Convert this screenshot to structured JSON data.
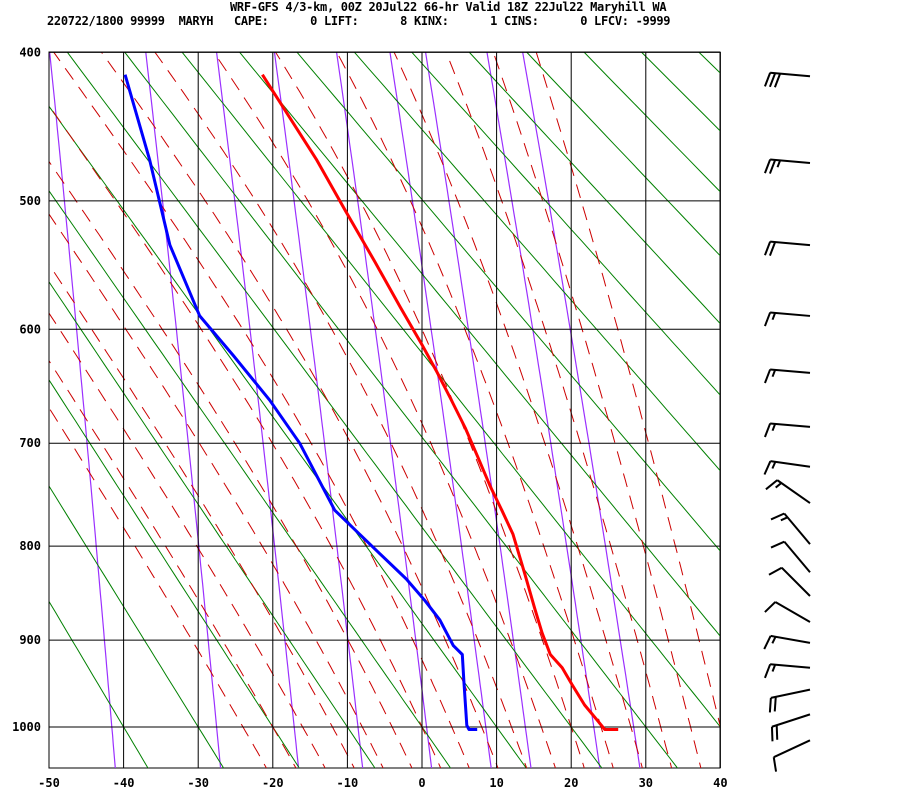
{
  "header": {
    "title": "WRF-GFS 4/3-km, 00Z 20Jul22 66-hr Valid 18Z 22Jul22 Maryhill WA",
    "info": "220722/1800 99999  MARYH   CAPE:      0 LIFT:      8 KINX:      1 CINS:      0 LFCV: -9999"
  },
  "chart_data": {
    "type": "line",
    "diagram": "thermodynamic sounding (vertical isotherms, pressure axis)",
    "title": "",
    "xlabel": "",
    "ylabel": "",
    "xlim": [
      -50,
      40
    ],
    "ylim": [
      1050,
      400
    ],
    "grid": true,
    "x_ticks": [
      "-50",
      "-40",
      "-30",
      "-20",
      "-10",
      "0",
      "10",
      "20",
      "30",
      "40"
    ],
    "y_ticks": [
      "400",
      "500",
      "600",
      "700",
      "800",
      "900",
      "1000"
    ],
    "colors": {
      "temperature": "#ff0000",
      "dewpoint": "#0000ff",
      "dry_adiabat": "#008000",
      "moist_adiabat": "#cc0000",
      "mixing_ratio": "#9b30ff",
      "grid": "#000000",
      "wind_barb": "#000000"
    },
    "dry_adiabats_theta_C": [
      -40,
      -30,
      -20,
      -10,
      0,
      10,
      20,
      30,
      40,
      50,
      60,
      70,
      80,
      90,
      100,
      110,
      120,
      130,
      140,
      150,
      160,
      170,
      180
    ],
    "moist_adiabats_thetaw_C": [
      -24,
      -20,
      -16,
      -12,
      -8,
      -4,
      0,
      4,
      8,
      12,
      16,
      20,
      24,
      28,
      32,
      36,
      40
    ],
    "mixing_ratio_lines_gkg": [
      0.1,
      0.4,
      1,
      2,
      4,
      7,
      10,
      18,
      25
    ],
    "series": [
      {
        "name": "temperature",
        "points": [
          [
            414,
            -21.4
          ],
          [
            471,
            -14.1
          ],
          [
            507,
            -10.3
          ],
          [
            546,
            -6.3
          ],
          [
            582,
            -2.9
          ],
          [
            613,
            0
          ],
          [
            635,
            1.9
          ],
          [
            659,
            3.8
          ],
          [
            686,
            5.8
          ],
          [
            713,
            7.5
          ],
          [
            740,
            9.1
          ],
          [
            764,
            10.7
          ],
          [
            788,
            12.2
          ],
          [
            829,
            13.8
          ],
          [
            865,
            15.1
          ],
          [
            892,
            16.1
          ],
          [
            916,
            17.2
          ],
          [
            931,
            18.8
          ],
          [
            950,
            20.1
          ],
          [
            974,
            21.8
          ],
          [
            992,
            23.5
          ],
          [
            1003,
            24.5
          ],
          [
            1003,
            26.3
          ]
        ]
      },
      {
        "name": "dewpoint",
        "points": [
          [
            414,
            -39.8
          ],
          [
            471,
            -36.5
          ],
          [
            533,
            -33.8
          ],
          [
            589,
            -29.8
          ],
          [
            622,
            -25.3
          ],
          [
            661,
            -20.4
          ],
          [
            700,
            -16.4
          ],
          [
            764,
            -11.7
          ],
          [
            798,
            -7.0
          ],
          [
            834,
            -2.1
          ],
          [
            857,
            0.4
          ],
          [
            878,
            2.4
          ],
          [
            906,
            4.2
          ],
          [
            916,
            5.4
          ],
          [
            945,
            5.6
          ],
          [
            998,
            6.0
          ],
          [
            1003,
            6.3
          ],
          [
            1003,
            7.4
          ]
        ]
      }
    ],
    "winds": [
      {
        "p": 415,
        "dir": 275,
        "kt": 30
      },
      {
        "p": 473,
        "dir": 275,
        "kt": 25
      },
      {
        "p": 533,
        "dir": 275,
        "kt": 20
      },
      {
        "p": 589,
        "dir": 275,
        "kt": 15
      },
      {
        "p": 637,
        "dir": 275,
        "kt": 15
      },
      {
        "p": 685,
        "dir": 275,
        "kt": 15
      },
      {
        "p": 722,
        "dir": 278,
        "kt": 15
      },
      {
        "p": 757,
        "dir": 305,
        "kt": 15
      },
      {
        "p": 798,
        "dir": 320,
        "kt": 15
      },
      {
        "p": 827,
        "dir": 320,
        "kt": 10
      },
      {
        "p": 852,
        "dir": 315,
        "kt": 10
      },
      {
        "p": 880,
        "dir": 300,
        "kt": 10
      },
      {
        "p": 903,
        "dir": 280,
        "kt": 15
      },
      {
        "p": 931,
        "dir": 275,
        "kt": 15
      },
      {
        "p": 956,
        "dir": 258,
        "kt": 20
      },
      {
        "p": 985,
        "dir": 252,
        "kt": 20
      },
      {
        "p": 1016,
        "dir": 245,
        "kt": 10
      }
    ]
  }
}
